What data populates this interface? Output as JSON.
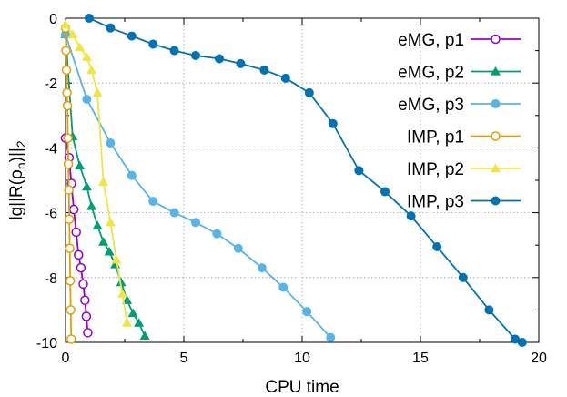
{
  "chart_data": {
    "type": "line",
    "title": "",
    "xlabel": "CPU time",
    "ylabel_main": "lg||R(ρ",
    "ylabel_sub": "n",
    "ylabel_close": ")||",
    "ylabel_sub2": "2",
    "xlim": [
      0,
      20
    ],
    "ylim": [
      -10,
      0
    ],
    "xticks": [
      0,
      5,
      10,
      15,
      20
    ],
    "yticks": [
      -10,
      -8,
      -6,
      -4,
      -2,
      0
    ],
    "xtick_labels": [
      "0",
      "5",
      "10",
      "15",
      "20"
    ],
    "ytick_labels": [
      "-10",
      "-8",
      "-6",
      "-4",
      "-2",
      "0"
    ],
    "grid": true,
    "legend_position": "top-right",
    "series": [
      {
        "name": "eMG, p1",
        "color": "#9400d3",
        "marker": "circle-open",
        "x": [
          0,
          0.15,
          0.25,
          0.35,
          0.45,
          0.55,
          0.65,
          0.75,
          0.82,
          0.88,
          0.94
        ],
        "y": [
          -3.7,
          -4.3,
          -5.1,
          -5.9,
          -6.6,
          -7.3,
          -7.7,
          -8.2,
          -8.7,
          -9.2,
          -9.7
        ]
      },
      {
        "name": "eMG, p2",
        "color": "#009e73",
        "marker": "triangle",
        "x": [
          0,
          0.3,
          0.6,
          0.9,
          1.1,
          1.35,
          1.6,
          1.85,
          2.1,
          2.35,
          2.6,
          2.85,
          3.1,
          3.35
        ],
        "y": [
          -0.5,
          -3.65,
          -4.55,
          -5.2,
          -5.8,
          -6.4,
          -6.9,
          -7.2,
          -7.6,
          -8.15,
          -8.7,
          -9.1,
          -9.4,
          -9.8
        ]
      },
      {
        "name": "eMG, p3",
        "color": "#56b4e9",
        "marker": "circle",
        "x": [
          0,
          0.9,
          1.9,
          2.8,
          3.7,
          4.6,
          5.5,
          6.4,
          7.3,
          8.3,
          9.2,
          10.2,
          11.2
        ],
        "y": [
          -0.5,
          -2.5,
          -3.85,
          -4.85,
          -5.65,
          -6.0,
          -6.3,
          -6.65,
          -7.1,
          -7.7,
          -8.3,
          -9.05,
          -9.85
        ]
      },
      {
        "name": "IMP, p1",
        "color": "#e69f00",
        "marker": "circle-open",
        "x": [
          0,
          0.02,
          0.04,
          0.06,
          0.08,
          0.1,
          0.12,
          0.14,
          0.16,
          0.18,
          0.2,
          0.22,
          0.24
        ],
        "y": [
          -0.3,
          -1.0,
          -1.6,
          -2.3,
          -2.7,
          -3.7,
          -4.5,
          -5.3,
          -6.2,
          -7.1,
          -8.1,
          -9.0,
          -9.9
        ]
      },
      {
        "name": "IMP, p2",
        "color": "#f0e442",
        "marker": "triangle",
        "x": [
          0,
          0.3,
          0.6,
          0.9,
          1.1,
          1.35,
          1.6,
          1.9,
          2.15,
          2.4,
          2.6
        ],
        "y": [
          -0.2,
          -0.5,
          -0.9,
          -1.2,
          -1.6,
          -2.3,
          -5.05,
          -6.3,
          -7.45,
          -8.5,
          -9.4
        ]
      },
      {
        "name": "IMP, p3",
        "color": "#0072b2",
        "marker": "circle",
        "x": [
          1.0,
          1.9,
          2.8,
          3.7,
          4.6,
          5.5,
          6.5,
          7.4,
          8.4,
          9.3,
          10.3,
          11.3,
          12.4,
          13.5,
          14.6,
          15.7,
          16.8,
          17.9,
          19.0,
          19.3
        ],
        "y": [
          0,
          -0.3,
          -0.55,
          -0.8,
          -1.0,
          -1.15,
          -1.25,
          -1.4,
          -1.6,
          -1.85,
          -2.3,
          -3.25,
          -4.7,
          -5.35,
          -6.1,
          -7.05,
          -8.0,
          -9.0,
          -9.9,
          -10.0
        ]
      }
    ]
  }
}
